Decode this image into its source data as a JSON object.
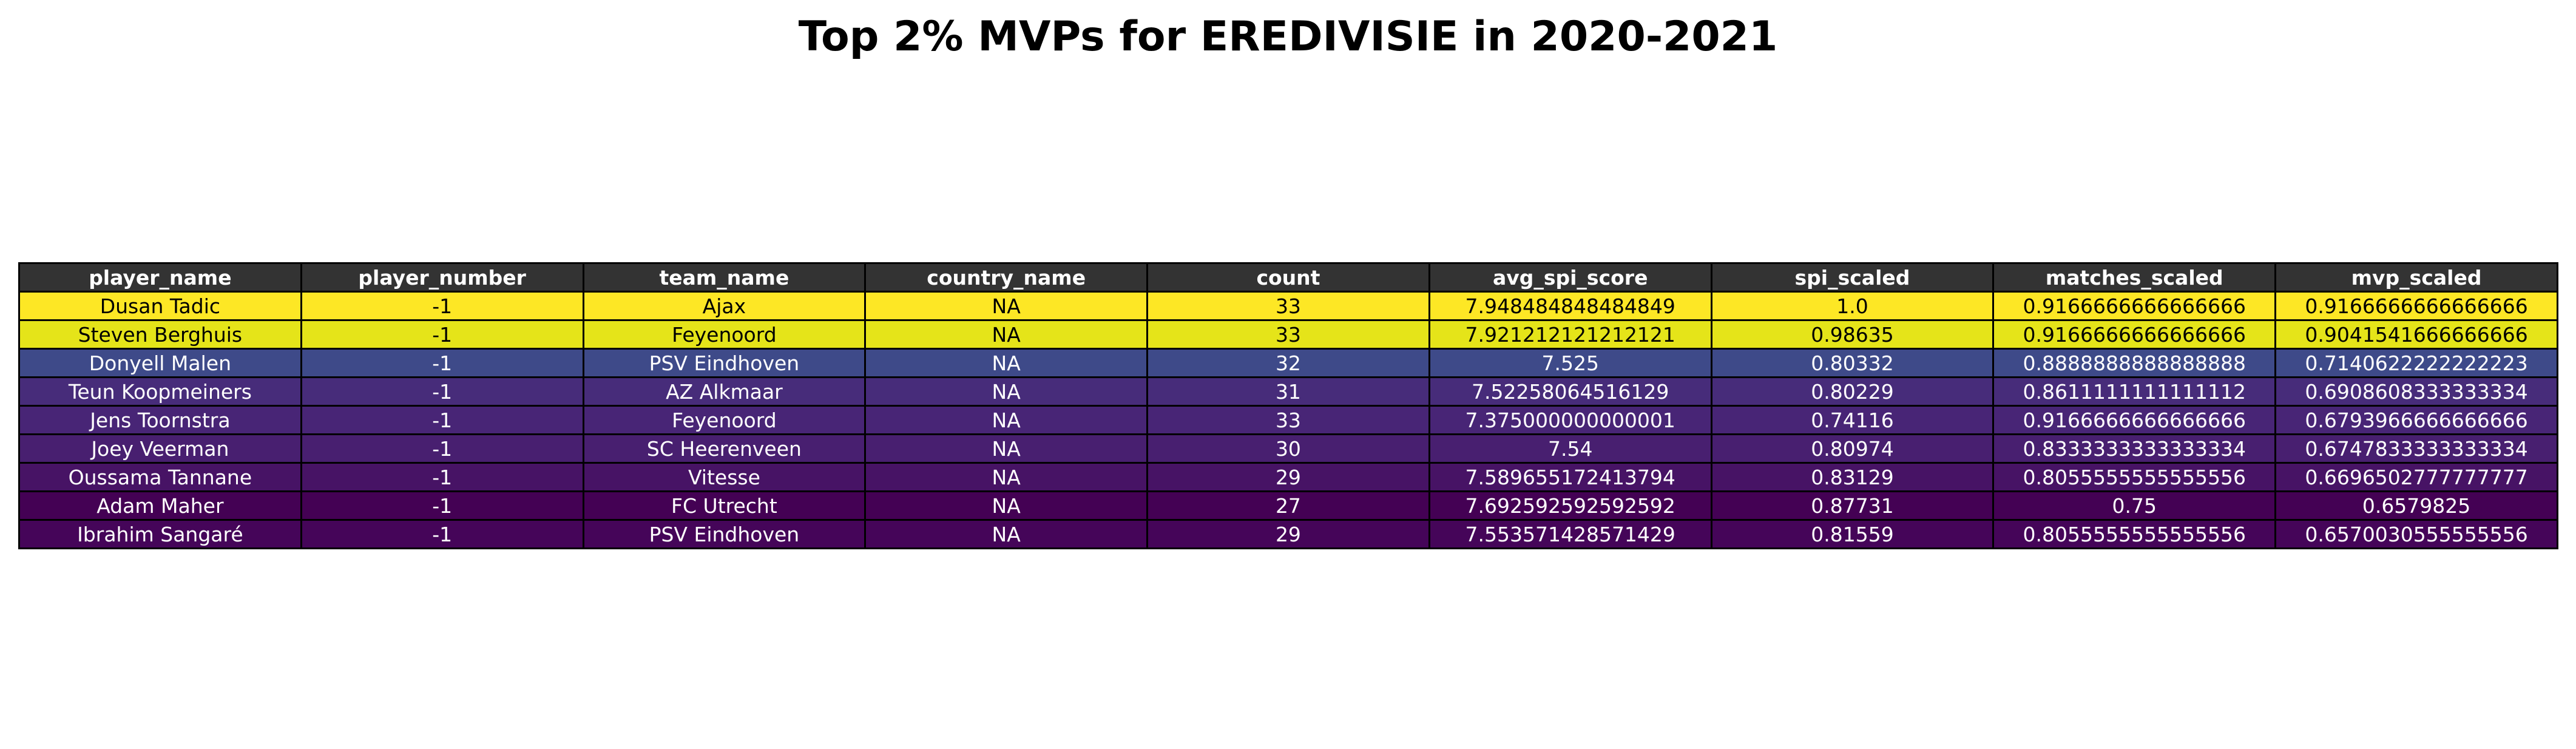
{
  "chart_data": {
    "type": "table",
    "title": "Top 2% MVPs for EREDIVISIE in 2020-2021",
    "header_color": "#333333",
    "columns": [
      "player_name",
      "player_number",
      "team_name",
      "country_name",
      "count",
      "avg_spi_score",
      "spi_scaled",
      "matches_scaled",
      "mvp_scaled"
    ],
    "rows": [
      {
        "color": "#fde725",
        "text": "dark-on-light",
        "cells": [
          "Dusan Tadic",
          "-1",
          "Ajax",
          "NA",
          "33",
          "7.948484848484849",
          "1.0",
          "0.9166666666666666",
          "0.9166666666666666"
        ]
      },
      {
        "color": "#e5e419",
        "text": "dark-on-light",
        "cells": [
          "Steven Berghuis",
          "-1",
          "Feyenoord",
          "NA",
          "33",
          "7.921212121212121",
          "0.98635",
          "0.9166666666666666",
          "0.9041541666666666"
        ]
      },
      {
        "color": "#3e4a89",
        "text": "light-on-dark",
        "cells": [
          "Donyell Malen",
          "-1",
          "PSV Eindhoven",
          "NA",
          "32",
          "7.525",
          "0.80332",
          "0.8888888888888888",
          "0.7140622222222223"
        ]
      },
      {
        "color": "#472c7a",
        "text": "light-on-dark",
        "cells": [
          "Teun Koopmeiners",
          "-1",
          "AZ Alkmaar",
          "NA",
          "31",
          "7.52258064516129",
          "0.80229",
          "0.8611111111111112",
          "0.6908608333333334"
        ]
      },
      {
        "color": "#482576",
        "text": "light-on-dark",
        "cells": [
          "Jens Toornstra",
          "-1",
          "Feyenoord",
          "NA",
          "33",
          "7.375000000000001",
          "0.74116",
          "0.9166666666666666",
          "0.6793966666666666"
        ]
      },
      {
        "color": "#481f70",
        "text": "light-on-dark",
        "cells": [
          "Joey Veerman",
          "-1",
          "SC Heerenveen",
          "NA",
          "30",
          "7.54",
          "0.80974",
          "0.8333333333333334",
          "0.6747833333333334"
        ]
      },
      {
        "color": "#471365",
        "text": "light-on-dark",
        "cells": [
          "Oussama Tannane",
          "-1",
          "Vitesse",
          "NA",
          "29",
          "7.589655172413794",
          "0.83129",
          "0.8055555555555556",
          "0.6696502777777777"
        ]
      },
      {
        "color": "#440154",
        "text": "light-on-dark",
        "cells": [
          "Adam Maher",
          "-1",
          "FC Utrecht",
          "NA",
          "27",
          "7.692592592592592",
          "0.87731",
          "0.75",
          "0.6579825"
        ]
      },
      {
        "color": "#450559",
        "text": "light-on-dark",
        "cells": [
          "Ibrahim Sangaré",
          "-1",
          "PSV Eindhoven",
          "NA",
          "29",
          "7.553571428571429",
          "0.81559",
          "0.8055555555555556",
          "0.6570030555555556"
        ]
      }
    ]
  }
}
